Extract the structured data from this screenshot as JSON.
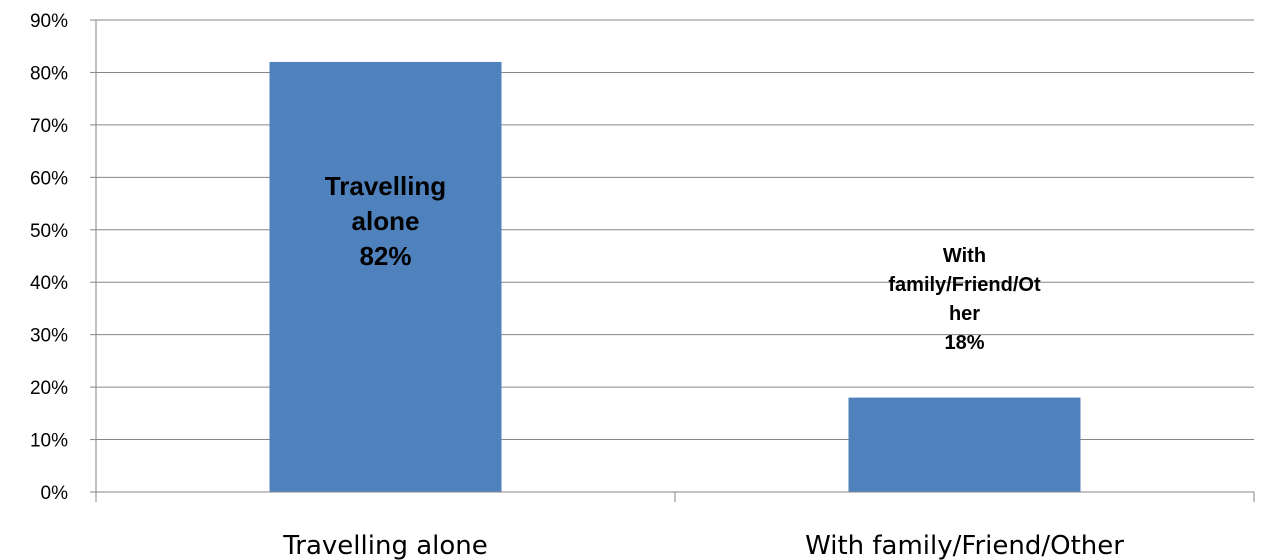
{
  "chart_data": {
    "type": "bar",
    "categories": [
      "Travelling alone",
      "With family/Friend/Other"
    ],
    "values": [
      82,
      18
    ],
    "unit": "%",
    "ylim": [
      0,
      90
    ],
    "yticks": [
      "0%",
      "10%",
      "20%",
      "30%",
      "40%",
      "50%",
      "60%",
      "70%",
      "80%",
      "90%"
    ],
    "grid": true,
    "legend": "none",
    "bar_color": "#4f81bd",
    "data_labels": [
      [
        "Travelling",
        "alone",
        "82%"
      ],
      [
        "With",
        "family/Friend/Ot",
        "her",
        "18%"
      ]
    ]
  }
}
